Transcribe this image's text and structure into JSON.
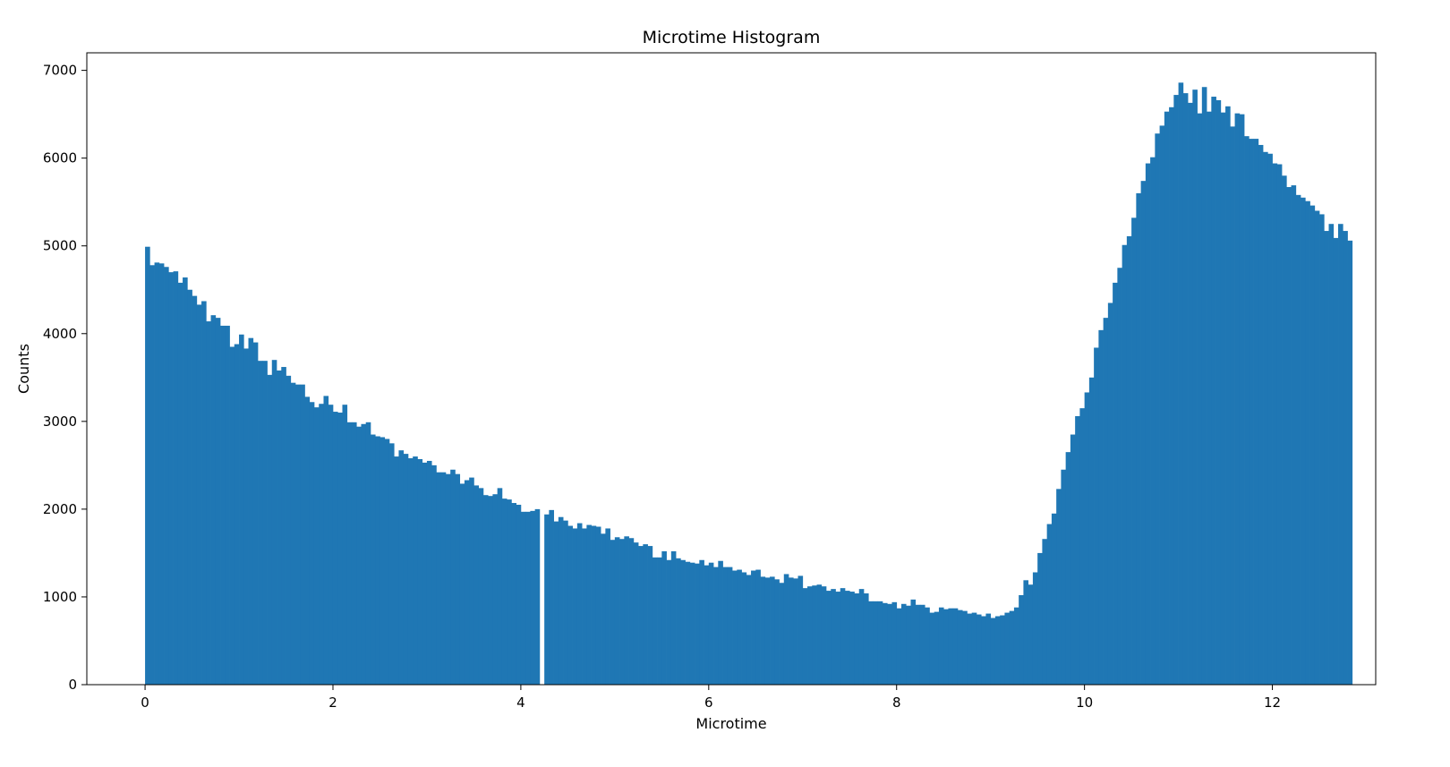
{
  "chart_data": {
    "type": "bar",
    "title": "Microtime Histogram",
    "xlabel": "Microtime",
    "ylabel": "Counts",
    "xlim": [
      -0.62,
      13.1
    ],
    "ylim": [
      0,
      7200
    ],
    "xticks": [
      0,
      2,
      4,
      6,
      8,
      10,
      12
    ],
    "yticks": [
      0,
      1000,
      2000,
      3000,
      4000,
      5000,
      6000,
      7000
    ],
    "grid": false,
    "legend": "none",
    "bar_color": "#1f77b4",
    "bins": {
      "x_start": 0.0,
      "bin_width": 0.05,
      "counts": [
        4990,
        4780,
        4810,
        4800,
        4760,
        4700,
        4710,
        4580,
        4640,
        4500,
        4430,
        4330,
        4370,
        4140,
        4210,
        4180,
        4090,
        4090,
        3850,
        3880,
        3990,
        3830,
        3950,
        3900,
        3690,
        3690,
        3530,
        3700,
        3580,
        3620,
        3520,
        3440,
        3420,
        3420,
        3280,
        3220,
        3160,
        3200,
        3290,
        3190,
        3110,
        3100,
        3190,
        2990,
        2990,
        2940,
        2970,
        2990,
        2850,
        2830,
        2820,
        2800,
        2750,
        2600,
        2670,
        2630,
        2580,
        2600,
        2570,
        2530,
        2550,
        2500,
        2420,
        2420,
        2400,
        2450,
        2400,
        2290,
        2330,
        2360,
        2270,
        2240,
        2160,
        2150,
        2170,
        2240,
        2120,
        2110,
        2070,
        2050,
        1970,
        1970,
        1980,
        2000,
        0,
        1940,
        1990,
        1860,
        1910,
        1870,
        1810,
        1780,
        1840,
        1780,
        1820,
        1810,
        1800,
        1720,
        1780,
        1650,
        1680,
        1660,
        1690,
        1670,
        1620,
        1580,
        1600,
        1580,
        1450,
        1450,
        1520,
        1420,
        1520,
        1440,
        1420,
        1400,
        1390,
        1380,
        1420,
        1360,
        1390,
        1340,
        1410,
        1340,
        1340,
        1300,
        1310,
        1280,
        1250,
        1300,
        1310,
        1230,
        1220,
        1230,
        1200,
        1160,
        1260,
        1220,
        1210,
        1240,
        1100,
        1120,
        1130,
        1140,
        1120,
        1070,
        1090,
        1060,
        1100,
        1070,
        1060,
        1040,
        1090,
        1040,
        950,
        950,
        950,
        930,
        920,
        940,
        870,
        920,
        900,
        970,
        910,
        910,
        880,
        820,
        830,
        880,
        860,
        870,
        870,
        850,
        840,
        810,
        820,
        800,
        780,
        810,
        760,
        780,
        790,
        820,
        840,
        880,
        1020,
        1190,
        1140,
        1280,
        1500,
        1660,
        1830,
        1950,
        2230,
        2450,
        2650,
        2850,
        3060,
        3150,
        3330,
        3500,
        3840,
        4040,
        4180,
        4350,
        4580,
        4750,
        5010,
        5110,
        5320,
        5600,
        5740,
        5940,
        6010,
        6280,
        6370,
        6530,
        6580,
        6720,
        6860,
        6740,
        6630,
        6780,
        6510,
        6810,
        6530,
        6700,
        6660,
        6520,
        6590,
        6360,
        6510,
        6500,
        6250,
        6220,
        6220,
        6150,
        6070,
        6050,
        5940,
        5930,
        5800,
        5670,
        5690,
        5580,
        5550,
        5510,
        5460,
        5400,
        5360,
        5170,
        5250,
        5090,
        5250,
        5170,
        5060
      ]
    }
  }
}
